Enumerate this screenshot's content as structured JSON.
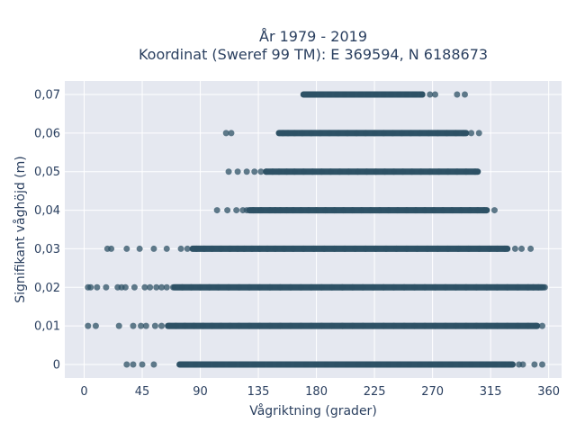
{
  "chart_data": {
    "type": "scatter",
    "title_lines": [
      "År 1979 - 2019",
      "Koordinat (Sweref 99 TM): E 369594, N 6188673"
    ],
    "xlabel": "Vågriktning (grader)",
    "ylabel": "Signifikant våghöjd (m)",
    "xlim": [
      -15,
      370
    ],
    "ylim": [
      -0.0035,
      0.0735
    ],
    "xticks": [
      0,
      45,
      90,
      135,
      180,
      225,
      270,
      315,
      360
    ],
    "xtick_labels": [
      "0",
      "45",
      "90",
      "135",
      "180",
      "225",
      "270",
      "315",
      "360"
    ],
    "yticks": [
      0,
      0.01,
      0.02,
      0.03,
      0.04,
      0.05,
      0.06,
      0.07
    ],
    "ytick_labels": [
      "0",
      "0,01",
      "0,02",
      "0,03",
      "0,04",
      "0,05",
      "0,06",
      "0,07"
    ],
    "grid": true,
    "marker_color": "#2e5266",
    "plot_background": "#e5e8f0",
    "rows": [
      {
        "y": 0.0,
        "dense": [
          [
            74,
            332
          ]
        ],
        "points": [
          33,
          38,
          45,
          54,
          76,
          79,
          86,
          92,
          96,
          102,
          107,
          113,
          116,
          122,
          126,
          132,
          138,
          144,
          151,
          158,
          165,
          172,
          180,
          188,
          196,
          204,
          212,
          220,
          228,
          236,
          244,
          252,
          260,
          268,
          276,
          284,
          292,
          300,
          308,
          313,
          318,
          325,
          330,
          337,
          340,
          349,
          355
        ]
      },
      {
        "y": 0.01,
        "dense": [
          [
            65,
            351
          ]
        ],
        "points": [
          3,
          9,
          27,
          38,
          44,
          48,
          55,
          60,
          66,
          71,
          78,
          85,
          92,
          99,
          106,
          113,
          120,
          128,
          136,
          144,
          152,
          160,
          168,
          176,
          184,
          192,
          200,
          208,
          216,
          224,
          232,
          240,
          248,
          256,
          264,
          272,
          280,
          288,
          296,
          304,
          312,
          320,
          328,
          336,
          344,
          350,
          355
        ]
      },
      {
        "y": 0.02,
        "dense": [
          [
            70,
            355
          ]
        ],
        "points": [
          3,
          5,
          10,
          17,
          26,
          29,
          32,
          39,
          47,
          51,
          56,
          60,
          64,
          69,
          76,
          83,
          90,
          97,
          104,
          112,
          120,
          128,
          136,
          144,
          152,
          160,
          168,
          176,
          184,
          192,
          200,
          208,
          216,
          224,
          232,
          240,
          248,
          256,
          264,
          272,
          280,
          288,
          296,
          304,
          312,
          320,
          328,
          336,
          344,
          348,
          352,
          356,
          357
        ]
      },
      {
        "y": 0.03,
        "dense": [
          [
            84,
            328
          ]
        ],
        "points": [
          18,
          21,
          33,
          43,
          54,
          64,
          75,
          80,
          87,
          93,
          99,
          106,
          113,
          119,
          124,
          130,
          136,
          142,
          148,
          155,
          162,
          170,
          178,
          186,
          194,
          202,
          210,
          218,
          226,
          234,
          242,
          250,
          258,
          266,
          274,
          282,
          290,
          298,
          306,
          314,
          320,
          326,
          334,
          339,
          346
        ]
      },
      {
        "y": 0.04,
        "dense": [
          [
            128,
            312
          ]
        ],
        "points": [
          103,
          111,
          118,
          123,
          126,
          131,
          137,
          144,
          148,
          152,
          157,
          162,
          168,
          174,
          180,
          187,
          194,
          201,
          208,
          215,
          222,
          229,
          236,
          243,
          250,
          257,
          264,
          271,
          278,
          285,
          292,
          299,
          305,
          310,
          318
        ]
      },
      {
        "y": 0.05,
        "dense": [
          [
            141,
            305
          ]
        ],
        "points": [
          112,
          119,
          126,
          132,
          137,
          141,
          146,
          151,
          157,
          163,
          170,
          177,
          184,
          191,
          198,
          205,
          212,
          219,
          226,
          233,
          240,
          247,
          254,
          261,
          268,
          275,
          282,
          289,
          296,
          303
        ]
      },
      {
        "y": 0.06,
        "dense": [
          [
            151,
            296
          ]
        ],
        "points": [
          110,
          114,
          154,
          158,
          163,
          169,
          176,
          183,
          190,
          197,
          204,
          211,
          218,
          225,
          232,
          239,
          246,
          253,
          260,
          267,
          274,
          281,
          288,
          294,
          300,
          306
        ]
      },
      {
        "y": 0.07,
        "dense": [
          [
            170,
            262
          ]
        ],
        "points": [
          174,
          178,
          184,
          190,
          196,
          202,
          208,
          214,
          220,
          226,
          232,
          238,
          244,
          250,
          256,
          262,
          268,
          272,
          289,
          295
        ]
      }
    ]
  }
}
